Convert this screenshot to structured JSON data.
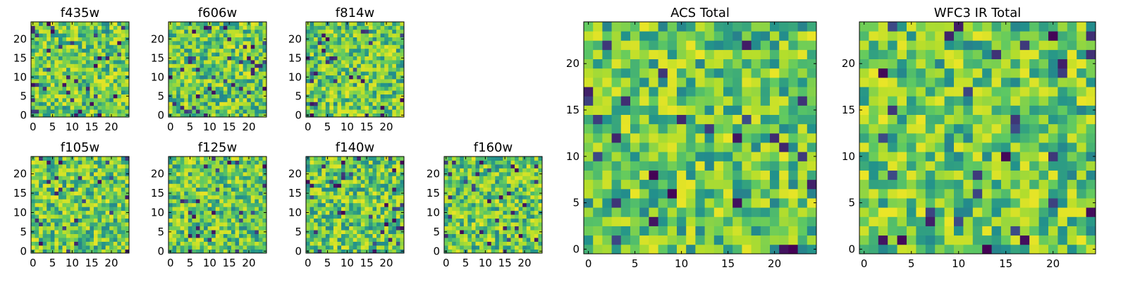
{
  "figure": {
    "colormap": [
      "#440154",
      "#3b528b",
      "#21918c",
      "#5ec962",
      "#b5de2b",
      "#fde725"
    ]
  },
  "chart_data": [
    {
      "type": "heatmap",
      "title": "f435w",
      "grid_size": 25,
      "xticks": [
        0,
        5,
        10,
        15,
        20
      ],
      "yticks": [
        0,
        5,
        10,
        15,
        20
      ],
      "colormap": "viridis",
      "xlim": [
        -0.5,
        24.5
      ],
      "ylim": [
        -0.5,
        24.5
      ],
      "seed": 11
    },
    {
      "type": "heatmap",
      "title": "f606w",
      "grid_size": 25,
      "xticks": [
        0,
        5,
        10,
        15,
        20
      ],
      "yticks": [
        0,
        5,
        10,
        15,
        20
      ],
      "colormap": "viridis",
      "xlim": [
        -0.5,
        24.5
      ],
      "ylim": [
        -0.5,
        24.5
      ],
      "seed": 23
    },
    {
      "type": "heatmap",
      "title": "f814w",
      "grid_size": 25,
      "xticks": [
        0,
        5,
        10,
        15,
        20
      ],
      "yticks": [
        0,
        5,
        10,
        15,
        20
      ],
      "colormap": "viridis",
      "xlim": [
        -0.5,
        24.5
      ],
      "ylim": [
        -0.5,
        24.5
      ],
      "seed": 37
    },
    {
      "type": "heatmap",
      "title": "f105w",
      "grid_size": 25,
      "xticks": [
        0,
        5,
        10,
        15,
        20
      ],
      "yticks": [
        0,
        5,
        10,
        15,
        20
      ],
      "colormap": "viridis",
      "xlim": [
        -0.5,
        24.5
      ],
      "ylim": [
        -0.5,
        24.5
      ],
      "seed": 41
    },
    {
      "type": "heatmap",
      "title": "f125w",
      "grid_size": 25,
      "xticks": [
        0,
        5,
        10,
        15,
        20
      ],
      "yticks": [
        0,
        5,
        10,
        15,
        20
      ],
      "colormap": "viridis",
      "xlim": [
        -0.5,
        24.5
      ],
      "ylim": [
        -0.5,
        24.5
      ],
      "seed": 53
    },
    {
      "type": "heatmap",
      "title": "f140w",
      "grid_size": 25,
      "xticks": [
        0,
        5,
        10,
        15,
        20
      ],
      "yticks": [
        0,
        5,
        10,
        15,
        20
      ],
      "colormap": "viridis",
      "xlim": [
        -0.5,
        24.5
      ],
      "ylim": [
        -0.5,
        24.5
      ],
      "seed": 67
    },
    {
      "type": "heatmap",
      "title": "f160w",
      "grid_size": 25,
      "xticks": [
        0,
        5,
        10,
        15,
        20
      ],
      "yticks": [
        0,
        5,
        10,
        15,
        20
      ],
      "colormap": "viridis",
      "xlim": [
        -0.5,
        24.5
      ],
      "ylim": [
        -0.5,
        24.5
      ],
      "seed": 71
    },
    {
      "type": "heatmap",
      "title": "ACS Total",
      "grid_size": 25,
      "xticks": [
        0,
        5,
        10,
        15,
        20
      ],
      "yticks": [
        0,
        5,
        10,
        15,
        20
      ],
      "colormap": "viridis",
      "xlim": [
        -0.5,
        24.5
      ],
      "ylim": [
        -0.5,
        24.5
      ],
      "seed": 83
    },
    {
      "type": "heatmap",
      "title": "WFC3 IR Total",
      "grid_size": 25,
      "xticks": [
        0,
        5,
        10,
        15,
        20
      ],
      "yticks": [
        0,
        5,
        10,
        15,
        20
      ],
      "colormap": "viridis",
      "xlim": [
        -0.5,
        24.5
      ],
      "ylim": [
        -0.5,
        24.5
      ],
      "seed": 97
    }
  ]
}
